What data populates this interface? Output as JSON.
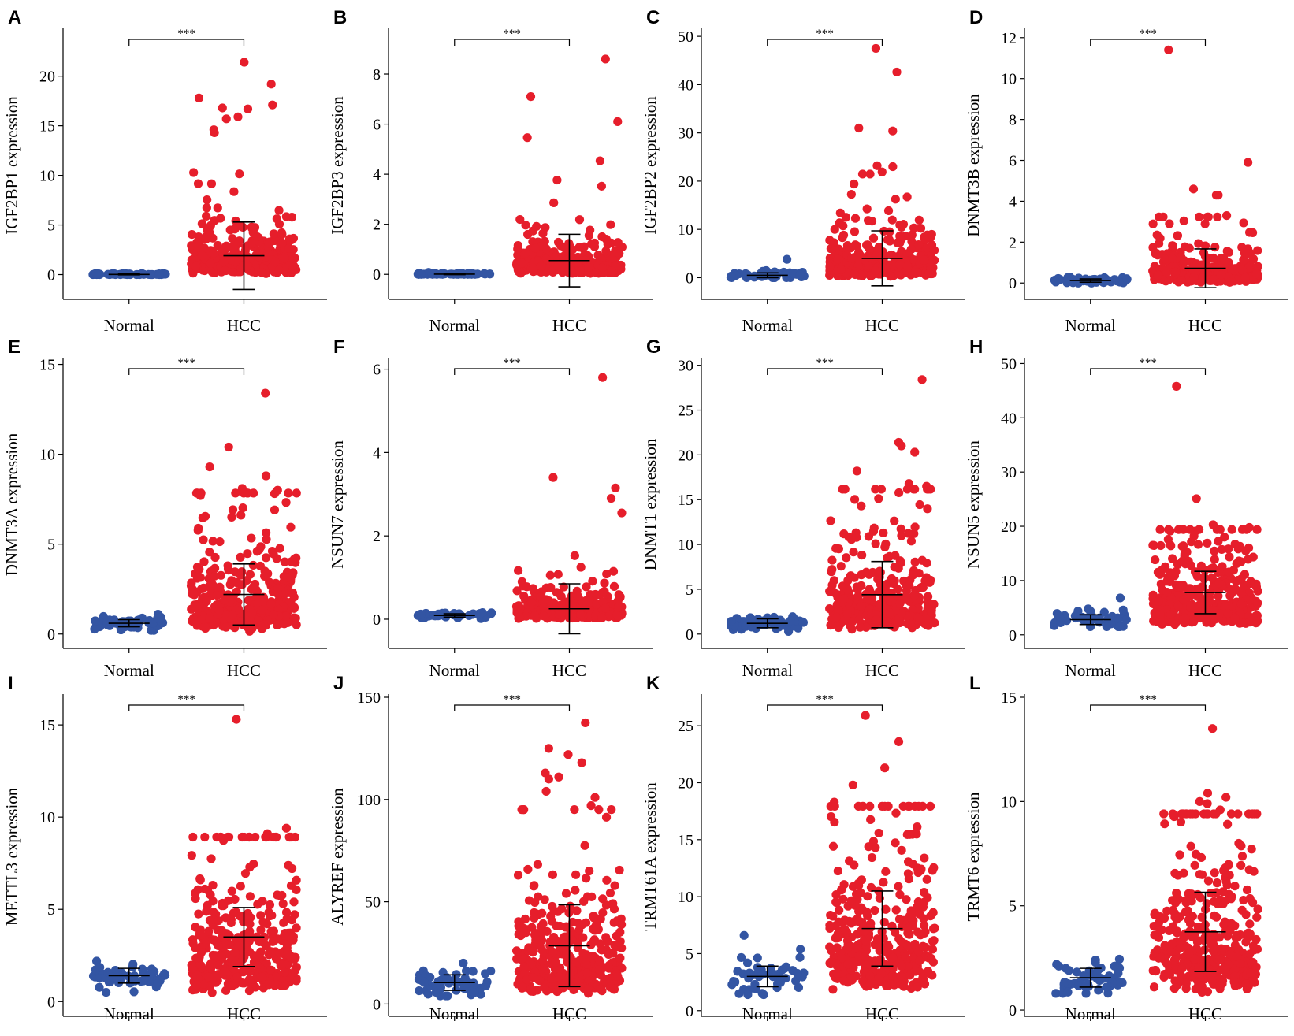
{
  "colors": {
    "normal": "#3355a3",
    "hcc": "#e61e2b",
    "axis": "#000000"
  },
  "chart_data": [
    {
      "letter": "A",
      "type": "scatter",
      "ylabel": "IGF2BP1 expression",
      "ylim": [
        -2.5,
        24.5
      ],
      "yticks": [
        0,
        5,
        10,
        15,
        20
      ],
      "categories": [
        "Normal",
        "HCC"
      ],
      "significance": "***",
      "series": [
        {
          "name": "Normal",
          "n": 50,
          "mean": 0.02,
          "sd": 0.04,
          "min": 0,
          "max": 0.15,
          "outliers": []
        },
        {
          "name": "HCC",
          "n": 371,
          "mean": 1.9,
          "sd": 3.4,
          "min": 0,
          "max": 21.4,
          "outliers": [
            21.4,
            19.2,
            17.8,
            17.1,
            16.8,
            16.7,
            15.9,
            15.7,
            14.6,
            14.3
          ]
        }
      ]
    },
    {
      "letter": "B",
      "type": "scatter",
      "ylabel": "IGF2BP3 expression",
      "ylim": [
        -1,
        9.7
      ],
      "yticks": [
        0,
        2,
        4,
        6,
        8
      ],
      "categories": [
        "Normal",
        "HCC"
      ],
      "significance": "***",
      "series": [
        {
          "name": "Normal",
          "n": 50,
          "mean": 0.01,
          "sd": 0.02,
          "min": 0,
          "max": 0.08,
          "outliers": []
        },
        {
          "name": "HCC",
          "n": 371,
          "mean": 0.55,
          "sd": 1.05,
          "min": 0,
          "max": 8.6,
          "outliers": [
            8.6,
            7.1,
            6.1
          ]
        }
      ]
    },
    {
      "letter": "C",
      "type": "scatter",
      "ylabel": "IGF2BP2 expression",
      "ylim": [
        -4.5,
        51
      ],
      "yticks": [
        0,
        10,
        20,
        30,
        40,
        50
      ],
      "categories": [
        "Normal",
        "HCC"
      ],
      "significance": "***",
      "series": [
        {
          "name": "Normal",
          "n": 50,
          "mean": 0.5,
          "sd": 0.5,
          "min": 0,
          "max": 3.8,
          "outliers": [
            3.8
          ]
        },
        {
          "name": "HCC",
          "n": 371,
          "mean": 4.0,
          "sd": 5.7,
          "min": 0,
          "max": 47.5,
          "outliers": [
            47.5,
            42.6,
            31.0,
            30.4,
            23.2,
            23.0,
            21.9
          ]
        }
      ]
    },
    {
      "letter": "D",
      "type": "scatter",
      "ylabel": "DNMT3B expression",
      "ylim": [
        -0.8,
        12.3
      ],
      "yticks": [
        0,
        2,
        4,
        6,
        8,
        10,
        12
      ],
      "categories": [
        "Normal",
        "HCC"
      ],
      "significance": "***",
      "series": [
        {
          "name": "Normal",
          "n": 50,
          "mean": 0.12,
          "sd": 0.08,
          "min": 0,
          "max": 0.35,
          "outliers": []
        },
        {
          "name": "HCC",
          "n": 371,
          "mean": 0.72,
          "sd": 0.95,
          "min": 0,
          "max": 11.4,
          "outliers": [
            11.4,
            5.9,
            4.6,
            4.3,
            4.3,
            3.3
          ]
        }
      ]
    },
    {
      "letter": "E",
      "type": "scatter",
      "ylabel": "DNMT3A expression",
      "ylim": [
        -0.8,
        15.2
      ],
      "yticks": [
        0,
        5,
        10,
        15
      ],
      "categories": [
        "Normal",
        "HCC"
      ],
      "significance": "***",
      "series": [
        {
          "name": "Normal",
          "n": 50,
          "mean": 0.6,
          "sd": 0.2,
          "min": 0.2,
          "max": 1.1,
          "outliers": []
        },
        {
          "name": "HCC",
          "n": 371,
          "mean": 2.2,
          "sd": 1.7,
          "min": 0.1,
          "max": 13.4,
          "outliers": [
            13.4,
            10.4,
            9.3,
            8.8,
            8.1,
            8.0
          ]
        }
      ]
    },
    {
      "letter": "F",
      "type": "scatter",
      "ylabel": "NSUN7 expression",
      "ylim": [
        -0.7,
        6.2
      ],
      "yticks": [
        0,
        2,
        4,
        6
      ],
      "categories": [
        "Normal",
        "HCC"
      ],
      "significance": "***",
      "series": [
        {
          "name": "Normal",
          "n": 50,
          "mean": 0.09,
          "sd": 0.04,
          "min": 0,
          "max": 0.2,
          "outliers": []
        },
        {
          "name": "HCC",
          "n": 371,
          "mean": 0.25,
          "sd": 0.6,
          "min": 0,
          "max": 5.8,
          "outliers": [
            5.8,
            3.4,
            3.15,
            2.9,
            2.55
          ]
        }
      ]
    },
    {
      "letter": "G",
      "type": "scatter",
      "ylabel": "DNMT1 expression",
      "ylim": [
        -1.6,
        30.5
      ],
      "yticks": [
        0,
        5,
        10,
        15,
        20,
        25,
        30
      ],
      "categories": [
        "Normal",
        "HCC"
      ],
      "significance": "***",
      "series": [
        {
          "name": "Normal",
          "n": 50,
          "mean": 1.2,
          "sd": 0.5,
          "min": 0.3,
          "max": 2.6,
          "outliers": []
        },
        {
          "name": "HCC",
          "n": 371,
          "mean": 4.4,
          "sd": 3.7,
          "min": 0.2,
          "max": 28.4,
          "outliers": [
            28.4,
            21.4,
            21.0,
            20.3,
            18.2,
            16.8,
            16.5
          ]
        }
      ]
    },
    {
      "letter": "H",
      "type": "scatter",
      "ylabel": "NSUN5 expression",
      "ylim": [
        -2.5,
        50.5
      ],
      "yticks": [
        0,
        10,
        20,
        30,
        40,
        50
      ],
      "categories": [
        "Normal",
        "HCC"
      ],
      "significance": "***",
      "series": [
        {
          "name": "Normal",
          "n": 50,
          "mean": 2.8,
          "sd": 0.9,
          "min": 1.5,
          "max": 6.8,
          "outliers": [
            6.8
          ]
        },
        {
          "name": "HCC",
          "n": 371,
          "mean": 7.8,
          "sd": 3.9,
          "min": 1.5,
          "max": 45.8,
          "outliers": [
            45.8,
            25.1,
            20.3,
            19.8
          ]
        }
      ]
    },
    {
      "letter": "I",
      "type": "scatter",
      "ylabel": "METTL3 expression",
      "ylim": [
        -0.8,
        16.5
      ],
      "yticks": [
        0,
        5,
        10,
        15
      ],
      "categories": [
        "Normal",
        "HCC"
      ],
      "significance": "***",
      "series": [
        {
          "name": "Normal",
          "n": 50,
          "mean": 1.4,
          "sd": 0.4,
          "min": 0.5,
          "max": 2.5,
          "outliers": []
        },
        {
          "name": "HCC",
          "n": 371,
          "mean": 3.5,
          "sd": 1.6,
          "min": 0.4,
          "max": 15.3,
          "outliers": [
            15.3,
            9.4,
            9.1
          ]
        }
      ]
    },
    {
      "letter": "J",
      "type": "scatter",
      "ylabel": "ALYREF expression",
      "ylim": [
        -6,
        150
      ],
      "yticks": [
        0,
        50,
        100,
        150
      ],
      "categories": [
        "Normal",
        "HCC"
      ],
      "significance": "***",
      "series": [
        {
          "name": "Normal",
          "n": 50,
          "mean": 10.5,
          "sd": 3.8,
          "min": 4,
          "max": 20,
          "outliers": []
        },
        {
          "name": "HCC",
          "n": 371,
          "mean": 28.5,
          "sd": 20.0,
          "min": 4,
          "max": 137.5,
          "outliers": [
            137.5,
            125.0,
            122.0,
            118.0,
            113.0,
            111.0,
            110.0,
            104.0,
            101.0,
            97.0
          ]
        }
      ]
    },
    {
      "letter": "K",
      "type": "scatter",
      "ylabel": "TRMT61A expression",
      "ylim": [
        -0.5,
        27.5
      ],
      "yticks": [
        0,
        5,
        10,
        15,
        20,
        25
      ],
      "categories": [
        "Normal",
        "HCC"
      ],
      "significance": "***",
      "series": [
        {
          "name": "Normal",
          "n": 50,
          "mean": 3.0,
          "sd": 0.9,
          "min": 1.4,
          "max": 6.6,
          "outliers": [
            6.6
          ]
        },
        {
          "name": "HCC",
          "n": 371,
          "mean": 7.2,
          "sd": 3.3,
          "min": 1.5,
          "max": 25.9,
          "outliers": [
            25.9,
            23.6,
            21.3,
            19.8,
            18.3
          ]
        }
      ]
    },
    {
      "letter": "L",
      "type": "scatter",
      "ylabel": "TRMT6 expression",
      "ylim": [
        -0.3,
        15
      ],
      "yticks": [
        0,
        5,
        10,
        15
      ],
      "categories": [
        "Normal",
        "HCC"
      ],
      "significance": "***",
      "series": [
        {
          "name": "Normal",
          "n": 50,
          "mean": 1.55,
          "sd": 0.45,
          "min": 0.8,
          "max": 3.0,
          "outliers": []
        },
        {
          "name": "HCC",
          "n": 371,
          "mean": 3.75,
          "sd": 1.9,
          "min": 0.7,
          "max": 13.5,
          "outliers": [
            13.5,
            10.4,
            10.2,
            10.0,
            9.9,
            9.6
          ]
        }
      ]
    }
  ]
}
